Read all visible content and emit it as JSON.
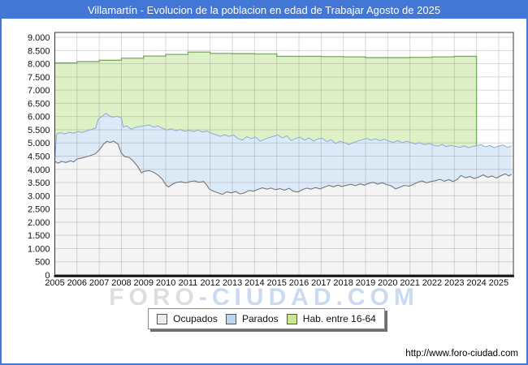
{
  "title": "Villamartín - Evolucion de la poblacion en edad de Trabajar Agosto de 2025",
  "watermark": {
    "left": "FORO",
    "right": "-CIUDAD.COM"
  },
  "footer_url": "http://www.foro-ciudad.com",
  "colors": {
    "titlebar": "#4377d6",
    "frame_border": "#4377d6",
    "axis": "#333333",
    "grid": "rgba(120,120,120,0.28)",
    "hab_fill": "#def1c6",
    "hab_stroke": "#79a95c",
    "parados_fill": "#dce9f7",
    "parados_stroke": "#8aabdc",
    "ocupados_fill": "#f4f4f4",
    "ocupados_stroke": "#767676"
  },
  "legend": [
    {
      "label": "Ocupados",
      "swatch": "#ececec"
    },
    {
      "label": "Parados",
      "swatch": "#bdd7f0"
    },
    {
      "label": "Hab. entre 16-64",
      "swatch": "#c9e88d"
    }
  ],
  "chart_data": {
    "type": "area",
    "title": "Villamartín - Evolucion de la poblacion en edad de Trabajar Agosto de 2025",
    "xlabel": "",
    "ylabel": "",
    "xlim": [
      2005,
      2025.67
    ],
    "ylim": [
      0,
      9000
    ],
    "grid": true,
    "legend_position": "bottom",
    "x_ticks": [
      2005,
      2006,
      2007,
      2008,
      2009,
      2010,
      2011,
      2012,
      2013,
      2014,
      2015,
      2016,
      2017,
      2018,
      2019,
      2020,
      2021,
      2022,
      2023,
      2024,
      2025
    ],
    "y_ticks": [
      [
        0,
        "0"
      ],
      [
        500,
        "500"
      ],
      [
        1000,
        "1.000"
      ],
      [
        1500,
        "1.500"
      ],
      [
        2000,
        "2.000"
      ],
      [
        2500,
        "2.500"
      ],
      [
        3000,
        "3.000"
      ],
      [
        3500,
        "3.500"
      ],
      [
        4000,
        "4.000"
      ],
      [
        4500,
        "4.500"
      ],
      [
        5000,
        "5.000"
      ],
      [
        5500,
        "5.500"
      ],
      [
        6000,
        "6.000"
      ],
      [
        6500,
        "6.500"
      ],
      [
        7000,
        "7.000"
      ],
      [
        7500,
        "7.500"
      ],
      [
        8000,
        "8.000"
      ],
      [
        8500,
        "8.500"
      ],
      [
        9000,
        "9.000"
      ]
    ],
    "series": [
      {
        "name": "Hab. entre 16-64",
        "style": "step-annual",
        "points": [
          [
            2005,
            8030
          ],
          [
            2006,
            8080
          ],
          [
            2007,
            8130
          ],
          [
            2008,
            8210
          ],
          [
            2009,
            8290
          ],
          [
            2010,
            8350
          ],
          [
            2011,
            8440
          ],
          [
            2012,
            8390
          ],
          [
            2013,
            8380
          ],
          [
            2014,
            8370
          ],
          [
            2015,
            8280
          ],
          [
            2016,
            8280
          ],
          [
            2017,
            8270
          ],
          [
            2018,
            8260
          ],
          [
            2019,
            8230
          ],
          [
            2020,
            8230
          ],
          [
            2021,
            8240
          ],
          [
            2022,
            8260
          ],
          [
            2023,
            8280
          ]
        ],
        "drop_end": [
          2024,
          4890
        ]
      },
      {
        "name": "Parados",
        "note": "upper boundary of blue band (ocupados + parados)",
        "points": [
          [
            2005.0,
            4350
          ],
          [
            2005.08,
            5340
          ],
          [
            2005.25,
            5390
          ],
          [
            2005.45,
            5340
          ],
          [
            2005.65,
            5400
          ],
          [
            2005.85,
            5370
          ],
          [
            2006.05,
            5430
          ],
          [
            2006.25,
            5400
          ],
          [
            2006.45,
            5460
          ],
          [
            2006.65,
            5510
          ],
          [
            2006.85,
            5570
          ],
          [
            2006.95,
            5900
          ],
          [
            2007.1,
            5990
          ],
          [
            2007.3,
            6120
          ],
          [
            2007.45,
            6030
          ],
          [
            2007.6,
            5980
          ],
          [
            2007.8,
            6010
          ],
          [
            2008.0,
            5950
          ],
          [
            2008.08,
            5610
          ],
          [
            2008.25,
            5640
          ],
          [
            2008.45,
            5520
          ],
          [
            2008.65,
            5590
          ],
          [
            2008.85,
            5620
          ],
          [
            2009.05,
            5650
          ],
          [
            2009.25,
            5680
          ],
          [
            2009.45,
            5600
          ],
          [
            2009.65,
            5640
          ],
          [
            2009.85,
            5550
          ],
          [
            2010.05,
            5490
          ],
          [
            2010.25,
            5540
          ],
          [
            2010.45,
            5460
          ],
          [
            2010.65,
            5510
          ],
          [
            2010.85,
            5440
          ],
          [
            2011.05,
            5480
          ],
          [
            2011.25,
            5430
          ],
          [
            2011.45,
            5490
          ],
          [
            2011.65,
            5410
          ],
          [
            2011.85,
            5450
          ],
          [
            2012.05,
            5370
          ],
          [
            2012.25,
            5310
          ],
          [
            2012.45,
            5250
          ],
          [
            2012.65,
            5310
          ],
          [
            2012.85,
            5250
          ],
          [
            2013.05,
            5300
          ],
          [
            2013.25,
            5170
          ],
          [
            2013.45,
            5110
          ],
          [
            2013.65,
            5240
          ],
          [
            2013.85,
            5160
          ],
          [
            2014.05,
            5220
          ],
          [
            2014.25,
            5070
          ],
          [
            2014.45,
            5140
          ],
          [
            2014.65,
            5200
          ],
          [
            2014.85,
            5250
          ],
          [
            2015.05,
            5300
          ],
          [
            2015.25,
            5190
          ],
          [
            2015.45,
            5270
          ],
          [
            2015.65,
            5090
          ],
          [
            2015.85,
            5170
          ],
          [
            2016.05,
            5220
          ],
          [
            2016.25,
            5110
          ],
          [
            2016.45,
            5190
          ],
          [
            2016.65,
            5070
          ],
          [
            2016.85,
            5150
          ],
          [
            2017.05,
            5180
          ],
          [
            2017.25,
            5050
          ],
          [
            2017.45,
            5120
          ],
          [
            2017.65,
            4980
          ],
          [
            2017.85,
            5060
          ],
          [
            2018.05,
            5010
          ],
          [
            2018.25,
            4940
          ],
          [
            2018.45,
            5010
          ],
          [
            2018.65,
            5070
          ],
          [
            2018.85,
            5120
          ],
          [
            2019.05,
            5170
          ],
          [
            2019.25,
            5100
          ],
          [
            2019.45,
            5160
          ],
          [
            2019.65,
            5080
          ],
          [
            2019.85,
            5140
          ],
          [
            2020.05,
            5070
          ],
          [
            2020.25,
            5020
          ],
          [
            2020.45,
            5090
          ],
          [
            2020.65,
            5010
          ],
          [
            2020.85,
            5060
          ],
          [
            2021.05,
            5020
          ],
          [
            2021.25,
            4960
          ],
          [
            2021.45,
            5010
          ],
          [
            2021.65,
            4930
          ],
          [
            2021.85,
            4980
          ],
          [
            2022.05,
            4920
          ],
          [
            2022.25,
            4880
          ],
          [
            2022.45,
            4940
          ],
          [
            2022.65,
            4860
          ],
          [
            2022.85,
            4910
          ],
          [
            2023.05,
            4870
          ],
          [
            2023.25,
            4830
          ],
          [
            2023.45,
            4890
          ],
          [
            2023.65,
            4820
          ],
          [
            2023.85,
            4870
          ],
          [
            2024.0,
            4890
          ],
          [
            2024.2,
            4940
          ],
          [
            2024.4,
            4850
          ],
          [
            2024.6,
            4910
          ],
          [
            2024.8,
            4820
          ],
          [
            2025.0,
            4880
          ],
          [
            2025.2,
            4920
          ],
          [
            2025.4,
            4830
          ],
          [
            2025.58,
            4890
          ]
        ]
      },
      {
        "name": "Ocupados",
        "points": [
          [
            2005.0,
            4300
          ],
          [
            2005.15,
            4230
          ],
          [
            2005.3,
            4300
          ],
          [
            2005.5,
            4260
          ],
          [
            2005.7,
            4320
          ],
          [
            2005.85,
            4280
          ],
          [
            2006.0,
            4390
          ],
          [
            2006.2,
            4430
          ],
          [
            2006.4,
            4470
          ],
          [
            2006.6,
            4520
          ],
          [
            2006.8,
            4580
          ],
          [
            2007.0,
            4730
          ],
          [
            2007.2,
            4960
          ],
          [
            2007.35,
            5060
          ],
          [
            2007.5,
            5020
          ],
          [
            2007.65,
            5070
          ],
          [
            2007.85,
            4950
          ],
          [
            2008.0,
            4610
          ],
          [
            2008.15,
            4480
          ],
          [
            2008.35,
            4450
          ],
          [
            2008.55,
            4300
          ],
          [
            2008.75,
            4090
          ],
          [
            2008.9,
            3870
          ],
          [
            2009.05,
            3930
          ],
          [
            2009.25,
            3950
          ],
          [
            2009.45,
            3890
          ],
          [
            2009.65,
            3780
          ],
          [
            2009.85,
            3620
          ],
          [
            2010.0,
            3410
          ],
          [
            2010.12,
            3330
          ],
          [
            2010.3,
            3440
          ],
          [
            2010.5,
            3510
          ],
          [
            2010.7,
            3530
          ],
          [
            2010.9,
            3490
          ],
          [
            2011.1,
            3540
          ],
          [
            2011.3,
            3560
          ],
          [
            2011.5,
            3510
          ],
          [
            2011.7,
            3540
          ],
          [
            2011.85,
            3400
          ],
          [
            2011.95,
            3260
          ],
          [
            2012.15,
            3170
          ],
          [
            2012.35,
            3110
          ],
          [
            2012.55,
            3050
          ],
          [
            2012.75,
            3150
          ],
          [
            2012.95,
            3110
          ],
          [
            2013.15,
            3160
          ],
          [
            2013.35,
            3070
          ],
          [
            2013.55,
            3110
          ],
          [
            2013.75,
            3200
          ],
          [
            2013.95,
            3170
          ],
          [
            2014.15,
            3240
          ],
          [
            2014.35,
            3300
          ],
          [
            2014.55,
            3250
          ],
          [
            2014.75,
            3290
          ],
          [
            2014.95,
            3230
          ],
          [
            2015.15,
            3270
          ],
          [
            2015.35,
            3210
          ],
          [
            2015.55,
            3280
          ],
          [
            2015.75,
            3170
          ],
          [
            2015.95,
            3140
          ],
          [
            2016.15,
            3230
          ],
          [
            2016.35,
            3290
          ],
          [
            2016.55,
            3250
          ],
          [
            2016.75,
            3310
          ],
          [
            2016.95,
            3260
          ],
          [
            2017.15,
            3330
          ],
          [
            2017.35,
            3390
          ],
          [
            2017.55,
            3340
          ],
          [
            2017.75,
            3400
          ],
          [
            2017.95,
            3350
          ],
          [
            2018.15,
            3400
          ],
          [
            2018.35,
            3430
          ],
          [
            2018.55,
            3380
          ],
          [
            2018.75,
            3450
          ],
          [
            2018.95,
            3400
          ],
          [
            2019.15,
            3470
          ],
          [
            2019.35,
            3510
          ],
          [
            2019.55,
            3440
          ],
          [
            2019.75,
            3490
          ],
          [
            2019.95,
            3420
          ],
          [
            2020.15,
            3380
          ],
          [
            2020.35,
            3260
          ],
          [
            2020.55,
            3320
          ],
          [
            2020.75,
            3390
          ],
          [
            2020.95,
            3360
          ],
          [
            2021.15,
            3430
          ],
          [
            2021.35,
            3510
          ],
          [
            2021.55,
            3560
          ],
          [
            2021.75,
            3490
          ],
          [
            2021.95,
            3540
          ],
          [
            2022.15,
            3570
          ],
          [
            2022.35,
            3620
          ],
          [
            2022.55,
            3550
          ],
          [
            2022.75,
            3610
          ],
          [
            2022.95,
            3540
          ],
          [
            2023.15,
            3630
          ],
          [
            2023.3,
            3770
          ],
          [
            2023.5,
            3680
          ],
          [
            2023.7,
            3730
          ],
          [
            2023.9,
            3650
          ],
          [
            2024.1,
            3710
          ],
          [
            2024.3,
            3790
          ],
          [
            2024.5,
            3700
          ],
          [
            2024.7,
            3750
          ],
          [
            2024.9,
            3670
          ],
          [
            2025.1,
            3760
          ],
          [
            2025.3,
            3830
          ],
          [
            2025.45,
            3750
          ],
          [
            2025.58,
            3810
          ]
        ]
      }
    ]
  }
}
